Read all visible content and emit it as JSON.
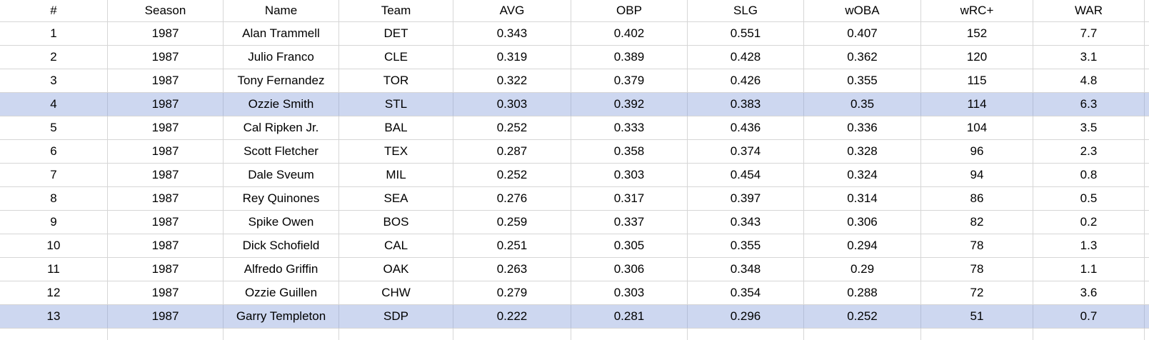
{
  "sheet": {
    "description": "Spreadsheet table of 1987 MLB shortstop batting statistics",
    "columns": [
      {
        "key": "rank",
        "label": "#"
      },
      {
        "key": "season",
        "label": "Season"
      },
      {
        "key": "name",
        "label": "Name"
      },
      {
        "key": "team",
        "label": "Team"
      },
      {
        "key": "avg",
        "label": "AVG"
      },
      {
        "key": "obp",
        "label": "OBP"
      },
      {
        "key": "slg",
        "label": "SLG"
      },
      {
        "key": "woba",
        "label": "wOBA"
      },
      {
        "key": "wrc_plus",
        "label": "wRC+"
      },
      {
        "key": "war",
        "label": "WAR"
      }
    ],
    "rows": [
      {
        "cells": [
          "1",
          "1987",
          "Alan Trammell",
          "DET",
          "0.343",
          "0.402",
          "0.551",
          "0.407",
          "152",
          "7.7"
        ],
        "highlighted": false
      },
      {
        "cells": [
          "2",
          "1987",
          "Julio Franco",
          "CLE",
          "0.319",
          "0.389",
          "0.428",
          "0.362",
          "120",
          "3.1"
        ],
        "highlighted": false
      },
      {
        "cells": [
          "3",
          "1987",
          "Tony Fernandez",
          "TOR",
          "0.322",
          "0.379",
          "0.426",
          "0.355",
          "115",
          "4.8"
        ],
        "highlighted": false
      },
      {
        "cells": [
          "4",
          "1987",
          "Ozzie Smith",
          "STL",
          "0.303",
          "0.392",
          "0.383",
          "0.35",
          "114",
          "6.3"
        ],
        "highlighted": true
      },
      {
        "cells": [
          "5",
          "1987",
          "Cal Ripken Jr.",
          "BAL",
          "0.252",
          "0.333",
          "0.436",
          "0.336",
          "104",
          "3.5"
        ],
        "highlighted": false
      },
      {
        "cells": [
          "6",
          "1987",
          "Scott Fletcher",
          "TEX",
          "0.287",
          "0.358",
          "0.374",
          "0.328",
          "96",
          "2.3"
        ],
        "highlighted": false
      },
      {
        "cells": [
          "7",
          "1987",
          "Dale Sveum",
          "MIL",
          "0.252",
          "0.303",
          "0.454",
          "0.324",
          "94",
          "0.8"
        ],
        "highlighted": false
      },
      {
        "cells": [
          "8",
          "1987",
          "Rey Quinones",
          "SEA",
          "0.276",
          "0.317",
          "0.397",
          "0.314",
          "86",
          "0.5"
        ],
        "highlighted": false
      },
      {
        "cells": [
          "9",
          "1987",
          "Spike Owen",
          "BOS",
          "0.259",
          "0.337",
          "0.343",
          "0.306",
          "82",
          "0.2"
        ],
        "highlighted": false
      },
      {
        "cells": [
          "10",
          "1987",
          "Dick Schofield",
          "CAL",
          "0.251",
          "0.305",
          "0.355",
          "0.294",
          "78",
          "1.3"
        ],
        "highlighted": false
      },
      {
        "cells": [
          "11",
          "1987",
          "Alfredo Griffin",
          "OAK",
          "0.263",
          "0.306",
          "0.348",
          "0.29",
          "78",
          "1.1"
        ],
        "highlighted": false
      },
      {
        "cells": [
          "12",
          "1987",
          "Ozzie Guillen",
          "CHW",
          "0.279",
          "0.303",
          "0.354",
          "0.288",
          "72",
          "3.6"
        ],
        "highlighted": false
      },
      {
        "cells": [
          "13",
          "1987",
          "Garry Templeton",
          "SDP",
          "0.222",
          "0.281",
          "0.296",
          "0.252",
          "51",
          "0.7"
        ],
        "highlighted": true
      }
    ],
    "colors": {
      "highlight": "#cdd7f0",
      "highlight_gridline": "#b5bfd8",
      "gridline": "#d6d6d6",
      "text": "#000000",
      "background": "#ffffff"
    }
  }
}
